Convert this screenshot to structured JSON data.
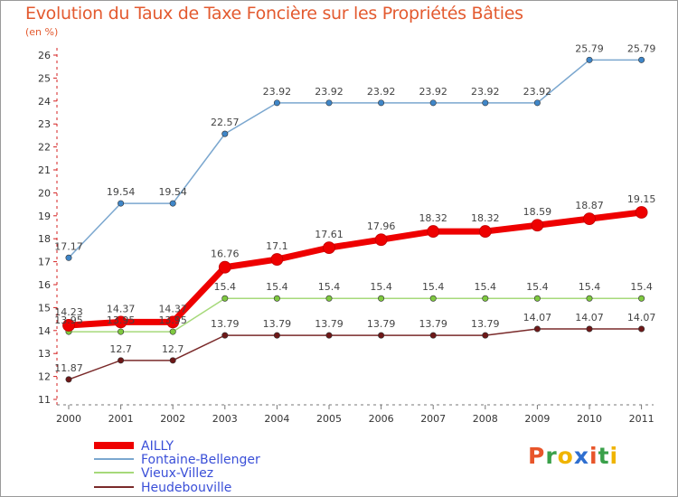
{
  "header": {
    "title": "Evolution du Taux de Taxe Foncière sur les Propriétés Bâties",
    "unit": "(en %)"
  },
  "logo": {
    "text": "Proxiti",
    "colors": [
      "#e8552a",
      "#3aa04a",
      "#f0b400",
      "#2f6fd0",
      "#e8552a",
      "#3aa04a",
      "#f0b400"
    ]
  },
  "chart_data": {
    "type": "line",
    "title": "Evolution du Taux de Taxe Foncière sur les Propriétés Bâties",
    "ylabel": "(en %)",
    "xlabel": "",
    "categories": [
      "2000",
      "2001",
      "2002",
      "2003",
      "2004",
      "2005",
      "2006",
      "2007",
      "2008",
      "2009",
      "2010",
      "2011"
    ],
    "ylim": [
      11,
      26
    ],
    "yticks": [
      11,
      12,
      13,
      14,
      15,
      16,
      17,
      18,
      19,
      20,
      21,
      22,
      23,
      24,
      25,
      26
    ],
    "grid": false,
    "legend_position": "bottom-left",
    "series": [
      {
        "name": "AILLY",
        "color": "#ee0000",
        "emphasis": true,
        "values": [
          14.23,
          14.37,
          14.37,
          16.76,
          17.1,
          17.61,
          17.96,
          18.32,
          18.32,
          18.59,
          18.87,
          19.15
        ],
        "labels": [
          "14.23",
          "14.37",
          "14.37",
          "16.76",
          "17.1",
          "17.61",
          "17.96",
          "18.32",
          "18.32",
          "18.59",
          "18.87",
          "19.15"
        ]
      },
      {
        "name": "Fontaine-Bellenger",
        "color": "#7ba7cf",
        "marker_color": "#3f86c8",
        "values": [
          17.17,
          19.54,
          19.54,
          22.57,
          23.92,
          23.92,
          23.92,
          23.92,
          23.92,
          23.92,
          25.79,
          25.79
        ],
        "labels": [
          "17.17",
          "19.54",
          "19.54",
          "22.57",
          "23.92",
          "23.92",
          "23.92",
          "23.92",
          "23.92",
          "23.92",
          "25.79",
          "25.79"
        ]
      },
      {
        "name": "Vieux-Villez",
        "color": "#a6d97a",
        "marker_color": "#7fc940",
        "values": [
          13.95,
          13.95,
          13.95,
          15.4,
          15.4,
          15.4,
          15.4,
          15.4,
          15.4,
          15.4,
          15.4,
          15.4
        ],
        "labels": [
          "13.95",
          "13.95",
          "13.95",
          "15.4",
          "15.4",
          "15.4",
          "15.4",
          "15.4",
          "15.4",
          "15.4",
          "15.4",
          "15.4"
        ]
      },
      {
        "name": "Heudebouville",
        "color": "#7a2a2a",
        "marker_color": "#6e1818",
        "values": [
          11.87,
          12.7,
          12.7,
          13.79,
          13.79,
          13.79,
          13.79,
          13.79,
          13.79,
          14.07,
          14.07,
          14.07
        ],
        "labels": [
          "11.87",
          "12.7",
          "12.7",
          "13.79",
          "13.79",
          "13.79",
          "13.79",
          "13.79",
          "13.79",
          "14.07",
          "14.07",
          "14.07"
        ]
      }
    ]
  }
}
